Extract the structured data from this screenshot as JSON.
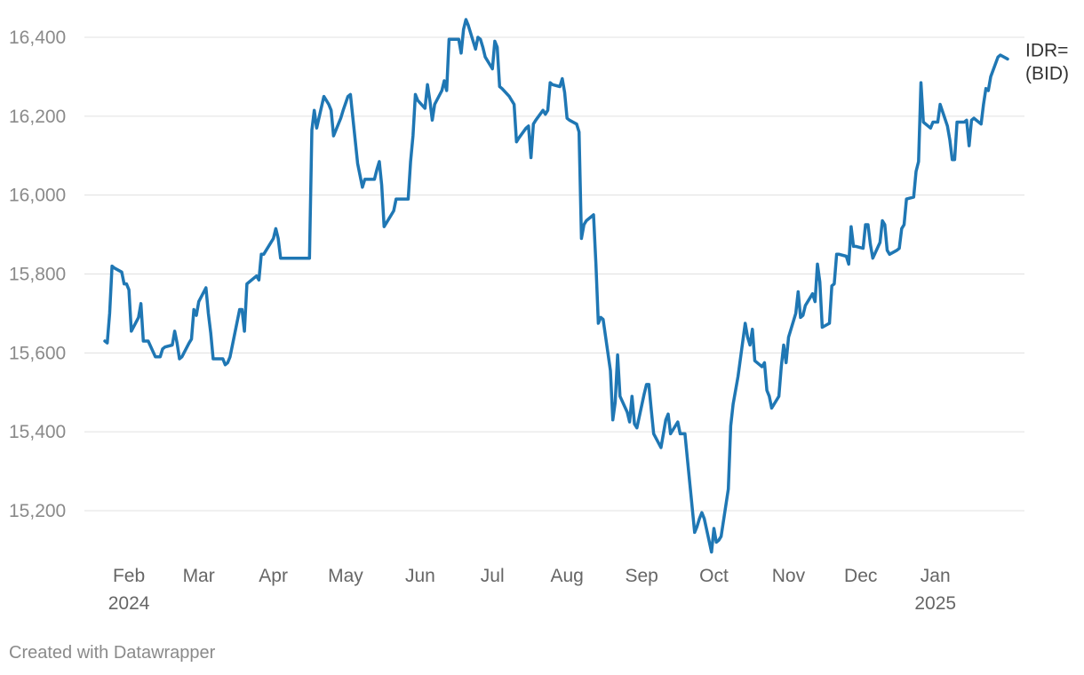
{
  "chart_data": {
    "type": "line",
    "series": [
      {
        "name": "IDR=\n(BID)",
        "color": "#1f77b4",
        "points": [
          [
            "2024-01-22",
            15630
          ],
          [
            "2024-01-23",
            15625
          ],
          [
            "2024-01-24",
            15700
          ],
          [
            "2024-01-25",
            15820
          ],
          [
            "2024-01-26",
            15815
          ],
          [
            "2024-01-29",
            15805
          ],
          [
            "2024-01-30",
            15775
          ],
          [
            "2024-01-31",
            15775
          ],
          [
            "2024-02-01",
            15760
          ],
          [
            "2024-02-02",
            15655
          ],
          [
            "2024-02-05",
            15690
          ],
          [
            "2024-02-06",
            15725
          ],
          [
            "2024-02-07",
            15630
          ],
          [
            "2024-02-08",
            15630
          ],
          [
            "2024-02-09",
            15630
          ],
          [
            "2024-02-12",
            15590
          ],
          [
            "2024-02-13",
            15590
          ],
          [
            "2024-02-14",
            15590
          ],
          [
            "2024-02-15",
            15610
          ],
          [
            "2024-02-16",
            15615
          ],
          [
            "2024-02-19",
            15620
          ],
          [
            "2024-02-20",
            15655
          ],
          [
            "2024-02-21",
            15625
          ],
          [
            "2024-02-22",
            15585
          ],
          [
            "2024-02-23",
            15590
          ],
          [
            "2024-02-26",
            15625
          ],
          [
            "2024-02-27",
            15635
          ],
          [
            "2024-02-28",
            15710
          ],
          [
            "2024-02-29",
            15695
          ],
          [
            "2024-03-01",
            15730
          ],
          [
            "2024-03-04",
            15765
          ],
          [
            "2024-03-05",
            15700
          ],
          [
            "2024-03-06",
            15650
          ],
          [
            "2024-03-07",
            15585
          ],
          [
            "2024-03-08",
            15585
          ],
          [
            "2024-03-11",
            15585
          ],
          [
            "2024-03-12",
            15570
          ],
          [
            "2024-03-13",
            15575
          ],
          [
            "2024-03-14",
            15590
          ],
          [
            "2024-03-15",
            15620
          ],
          [
            "2024-03-18",
            15710
          ],
          [
            "2024-03-19",
            15710
          ],
          [
            "2024-03-20",
            15655
          ],
          [
            "2024-03-21",
            15775
          ],
          [
            "2024-03-22",
            15780
          ],
          [
            "2024-03-25",
            15795
          ],
          [
            "2024-03-26",
            15785
          ],
          [
            "2024-03-27",
            15850
          ],
          [
            "2024-03-28",
            15850
          ],
          [
            "2024-04-01",
            15890
          ],
          [
            "2024-04-02",
            15915
          ],
          [
            "2024-04-03",
            15890
          ],
          [
            "2024-04-04",
            15840
          ],
          [
            "2024-04-16",
            15840
          ],
          [
            "2024-04-17",
            16165
          ],
          [
            "2024-04-18",
            16215
          ],
          [
            "2024-04-19",
            16170
          ],
          [
            "2024-04-22",
            16250
          ],
          [
            "2024-04-23",
            16240
          ],
          [
            "2024-04-24",
            16230
          ],
          [
            "2024-04-25",
            16215
          ],
          [
            "2024-04-26",
            16150
          ],
          [
            "2024-04-29",
            16195
          ],
          [
            "2024-04-30",
            16215
          ],
          [
            "2024-05-02",
            16250
          ],
          [
            "2024-05-03",
            16255
          ],
          [
            "2024-05-06",
            16080
          ],
          [
            "2024-05-07",
            16050
          ],
          [
            "2024-05-08",
            16020
          ],
          [
            "2024-05-09",
            16040
          ],
          [
            "2024-05-10",
            16040
          ],
          [
            "2024-05-13",
            16040
          ],
          [
            "2024-05-14",
            16065
          ],
          [
            "2024-05-15",
            16085
          ],
          [
            "2024-05-16",
            16025
          ],
          [
            "2024-05-17",
            15920
          ],
          [
            "2024-05-20",
            15950
          ],
          [
            "2024-05-21",
            15960
          ],
          [
            "2024-05-22",
            15990
          ],
          [
            "2024-05-23",
            15990
          ],
          [
            "2024-05-24",
            15990
          ],
          [
            "2024-05-27",
            15990
          ],
          [
            "2024-05-28",
            16085
          ],
          [
            "2024-05-29",
            16150
          ],
          [
            "2024-05-30",
            16255
          ],
          [
            "2024-05-31",
            16240
          ],
          [
            "2024-06-03",
            16220
          ],
          [
            "2024-06-04",
            16280
          ],
          [
            "2024-06-05",
            16240
          ],
          [
            "2024-06-06",
            16190
          ],
          [
            "2024-06-07",
            16230
          ],
          [
            "2024-06-10",
            16265
          ],
          [
            "2024-06-11",
            16290
          ],
          [
            "2024-06-12",
            16265
          ],
          [
            "2024-06-13",
            16395
          ],
          [
            "2024-06-14",
            16395
          ],
          [
            "2024-06-17",
            16395
          ],
          [
            "2024-06-18",
            16360
          ],
          [
            "2024-06-19",
            16420
          ],
          [
            "2024-06-20",
            16445
          ],
          [
            "2024-06-21",
            16430
          ],
          [
            "2024-06-24",
            16370
          ],
          [
            "2024-06-25",
            16400
          ],
          [
            "2024-06-26",
            16395
          ],
          [
            "2024-06-27",
            16375
          ],
          [
            "2024-06-28",
            16350
          ],
          [
            "2024-07-01",
            16320
          ],
          [
            "2024-07-02",
            16390
          ],
          [
            "2024-07-03",
            16375
          ],
          [
            "2024-07-04",
            16275
          ],
          [
            "2024-07-05",
            16270
          ],
          [
            "2024-07-08",
            16250
          ],
          [
            "2024-07-09",
            16240
          ],
          [
            "2024-07-10",
            16230
          ],
          [
            "2024-07-11",
            16135
          ],
          [
            "2024-07-12",
            16145
          ],
          [
            "2024-07-15",
            16170
          ],
          [
            "2024-07-16",
            16175
          ],
          [
            "2024-07-17",
            16095
          ],
          [
            "2024-07-18",
            16180
          ],
          [
            "2024-07-19",
            16190
          ],
          [
            "2024-07-22",
            16215
          ],
          [
            "2024-07-23",
            16205
          ],
          [
            "2024-07-24",
            16215
          ],
          [
            "2024-07-25",
            16285
          ],
          [
            "2024-07-26",
            16280
          ],
          [
            "2024-07-29",
            16275
          ],
          [
            "2024-07-30",
            16295
          ],
          [
            "2024-07-31",
            16260
          ],
          [
            "2024-08-01",
            16195
          ],
          [
            "2024-08-02",
            16190
          ],
          [
            "2024-08-05",
            16180
          ],
          [
            "2024-08-06",
            16160
          ],
          [
            "2024-08-07",
            15890
          ],
          [
            "2024-08-08",
            15925
          ],
          [
            "2024-08-09",
            15935
          ],
          [
            "2024-08-12",
            15950
          ],
          [
            "2024-08-13",
            15825
          ],
          [
            "2024-08-14",
            15675
          ],
          [
            "2024-08-15",
            15690
          ],
          [
            "2024-08-16",
            15685
          ],
          [
            "2024-08-19",
            15555
          ],
          [
            "2024-08-20",
            15430
          ],
          [
            "2024-08-21",
            15475
          ],
          [
            "2024-08-22",
            15595
          ],
          [
            "2024-08-23",
            15490
          ],
          [
            "2024-08-26",
            15450
          ],
          [
            "2024-08-27",
            15425
          ],
          [
            "2024-08-28",
            15490
          ],
          [
            "2024-08-29",
            15420
          ],
          [
            "2024-08-30",
            15410
          ],
          [
            "2024-09-02",
            15495
          ],
          [
            "2024-09-03",
            15520
          ],
          [
            "2024-09-04",
            15520
          ],
          [
            "2024-09-05",
            15455
          ],
          [
            "2024-09-06",
            15395
          ],
          [
            "2024-09-09",
            15360
          ],
          [
            "2024-09-10",
            15395
          ],
          [
            "2024-09-11",
            15430
          ],
          [
            "2024-09-12",
            15445
          ],
          [
            "2024-09-13",
            15395
          ],
          [
            "2024-09-16",
            15425
          ],
          [
            "2024-09-17",
            15395
          ],
          [
            "2024-09-18",
            15395
          ],
          [
            "2024-09-19",
            15395
          ],
          [
            "2024-09-20",
            15330
          ],
          [
            "2024-09-23",
            15145
          ],
          [
            "2024-09-24",
            15160
          ],
          [
            "2024-09-25",
            15180
          ],
          [
            "2024-09-26",
            15195
          ],
          [
            "2024-09-27",
            15180
          ],
          [
            "2024-09-30",
            15095
          ],
          [
            "2024-10-01",
            15155
          ],
          [
            "2024-10-02",
            15120
          ],
          [
            "2024-10-03",
            15125
          ],
          [
            "2024-10-04",
            15135
          ],
          [
            "2024-10-07",
            15255
          ],
          [
            "2024-10-08",
            15415
          ],
          [
            "2024-10-09",
            15470
          ],
          [
            "2024-10-11",
            15540
          ],
          [
            "2024-10-14",
            15675
          ],
          [
            "2024-10-15",
            15640
          ],
          [
            "2024-10-16",
            15620
          ],
          [
            "2024-10-17",
            15660
          ],
          [
            "2024-10-18",
            15580
          ],
          [
            "2024-10-21",
            15565
          ],
          [
            "2024-10-22",
            15575
          ],
          [
            "2024-10-23",
            15505
          ],
          [
            "2024-10-24",
            15490
          ],
          [
            "2024-10-25",
            15460
          ],
          [
            "2024-10-28",
            15490
          ],
          [
            "2024-10-29",
            15565
          ],
          [
            "2024-10-30",
            15620
          ],
          [
            "2024-10-31",
            15575
          ],
          [
            "2024-11-01",
            15640
          ],
          [
            "2024-11-04",
            15700
          ],
          [
            "2024-11-05",
            15755
          ],
          [
            "2024-11-06",
            15690
          ],
          [
            "2024-11-07",
            15695
          ],
          [
            "2024-11-08",
            15720
          ],
          [
            "2024-11-11",
            15750
          ],
          [
            "2024-11-12",
            15730
          ],
          [
            "2024-11-13",
            15825
          ],
          [
            "2024-11-14",
            15780
          ],
          [
            "2024-11-15",
            15665
          ],
          [
            "2024-11-18",
            15675
          ],
          [
            "2024-11-19",
            15770
          ],
          [
            "2024-11-20",
            15775
          ],
          [
            "2024-11-21",
            15850
          ],
          [
            "2024-11-22",
            15850
          ],
          [
            "2024-11-25",
            15845
          ],
          [
            "2024-11-26",
            15825
          ],
          [
            "2024-11-27",
            15920
          ],
          [
            "2024-11-28",
            15870
          ],
          [
            "2024-11-29",
            15870
          ],
          [
            "2024-12-02",
            15865
          ],
          [
            "2024-12-03",
            15925
          ],
          [
            "2024-12-04",
            15925
          ],
          [
            "2024-12-05",
            15875
          ],
          [
            "2024-12-06",
            15840
          ],
          [
            "2024-12-09",
            15880
          ],
          [
            "2024-12-10",
            15935
          ],
          [
            "2024-12-11",
            15925
          ],
          [
            "2024-12-12",
            15860
          ],
          [
            "2024-12-13",
            15850
          ],
          [
            "2024-12-16",
            15860
          ],
          [
            "2024-12-17",
            15865
          ],
          [
            "2024-12-18",
            15915
          ],
          [
            "2024-12-19",
            15925
          ],
          [
            "2024-12-20",
            15990
          ],
          [
            "2024-12-23",
            15995
          ],
          [
            "2024-12-24",
            16060
          ],
          [
            "2024-12-25",
            16085
          ],
          [
            "2024-12-26",
            16285
          ],
          [
            "2024-12-27",
            16185
          ],
          [
            "2024-12-30",
            16170
          ],
          [
            "2024-12-31",
            16185
          ],
          [
            "2025-01-02",
            16185
          ],
          [
            "2025-01-03",
            16230
          ],
          [
            "2025-01-06",
            16175
          ],
          [
            "2025-01-07",
            16140
          ],
          [
            "2025-01-08",
            16090
          ],
          [
            "2025-01-09",
            16090
          ],
          [
            "2025-01-10",
            16185
          ],
          [
            "2025-01-13",
            16185
          ],
          [
            "2025-01-14",
            16190
          ],
          [
            "2025-01-15",
            16125
          ],
          [
            "2025-01-16",
            16190
          ],
          [
            "2025-01-17",
            16195
          ],
          [
            "2025-01-20",
            16180
          ],
          [
            "2025-01-21",
            16230
          ],
          [
            "2025-01-22",
            16270
          ],
          [
            "2025-01-23",
            16265
          ],
          [
            "2025-01-24",
            16300
          ],
          [
            "2025-01-27",
            16350
          ],
          [
            "2025-01-28",
            16355
          ],
          [
            "2025-01-31",
            16345
          ]
        ]
      }
    ],
    "y_ticks": [
      15200,
      15400,
      15600,
      15800,
      16000,
      16200,
      16400
    ],
    "y_tick_labels": [
      "15,200",
      "15,400",
      "15,600",
      "15,800",
      "16,000",
      "16,200",
      "16,400"
    ],
    "ylim": [
      15100,
      16450
    ],
    "xlim": [
      "2024-01-22",
      "2025-01-31"
    ],
    "x_ticks": [
      {
        "date": "2024-02-01",
        "label": "Feb",
        "year": "2024"
      },
      {
        "date": "2024-03-01",
        "label": "Mar",
        "year": ""
      },
      {
        "date": "2024-04-01",
        "label": "Apr",
        "year": ""
      },
      {
        "date": "2024-05-01",
        "label": "May",
        "year": ""
      },
      {
        "date": "2024-06-01",
        "label": "Jun",
        "year": ""
      },
      {
        "date": "2024-07-01",
        "label": "Jul",
        "year": ""
      },
      {
        "date": "2024-08-01",
        "label": "Aug",
        "year": ""
      },
      {
        "date": "2024-09-01",
        "label": "Sep",
        "year": ""
      },
      {
        "date": "2024-10-01",
        "label": "Oct",
        "year": ""
      },
      {
        "date": "2024-11-01",
        "label": "Nov",
        "year": ""
      },
      {
        "date": "2024-12-01",
        "label": "Dec",
        "year": ""
      },
      {
        "date": "2025-01-01",
        "label": "Jan",
        "year": "2025"
      }
    ],
    "grid": "horizontal",
    "legend": "direct label at line end"
  },
  "footer": {
    "credit": "Created with Datawrapper"
  }
}
